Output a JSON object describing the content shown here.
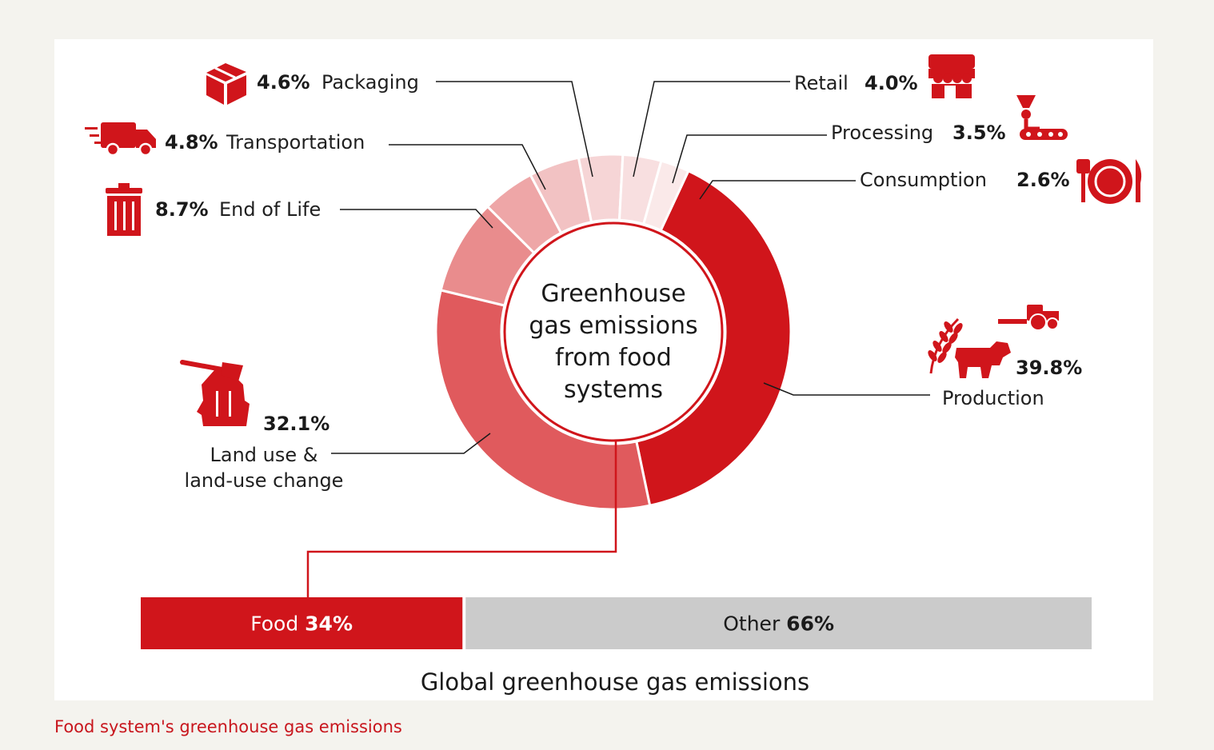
{
  "colors": {
    "food": "#d0151b",
    "other": "#cbcbcb",
    "production": "#d0151b",
    "land_use": "#e05a5d",
    "end_of_life": "#e98c8d",
    "transportation": "#eea6a7",
    "packaging": "#f2c2c3",
    "retail": "#f6d5d6",
    "processing": "#f8dfe0",
    "consumption": "#fae9e9",
    "icon": "#d0151b",
    "leader_line": "#1a1a1a",
    "caption": "#c8161d"
  },
  "center_label": [
    "Greenhouse",
    "gas emissions",
    "from food",
    "systems"
  ],
  "caption": "Food system's greenhouse gas emissions",
  "chart_data": [
    {
      "type": "pie",
      "donut": true,
      "title": "Greenhouse gas emissions from food systems",
      "unit": "%",
      "slices": [
        {
          "key": "production",
          "label": "Production",
          "value": 39.8,
          "value_text": "39.8%",
          "icon": "tractor-cow-wheat-icon"
        },
        {
          "key": "land_use",
          "label": "Land use & land-use change",
          "label_lines": [
            "Land use &",
            "land-use change"
          ],
          "value": 32.1,
          "value_text": "32.1%",
          "icon": "axe-stump-icon"
        },
        {
          "key": "end_of_life",
          "label": "End of Life",
          "value": 8.7,
          "value_text": "8.7%",
          "icon": "trash-bin-icon"
        },
        {
          "key": "transportation",
          "label": "Transportation",
          "value": 4.8,
          "value_text": "4.8%",
          "icon": "delivery-truck-icon"
        },
        {
          "key": "packaging",
          "label": "Packaging",
          "value": 4.6,
          "value_text": "4.6%",
          "icon": "package-box-icon"
        },
        {
          "key": "retail",
          "label": "Retail",
          "value": 4.0,
          "value_text": "4.0%",
          "icon": "storefront-icon"
        },
        {
          "key": "processing",
          "label": "Processing",
          "value": 3.5,
          "value_text": "3.5%",
          "icon": "processing-machine-icon"
        },
        {
          "key": "consumption",
          "label": "Consumption",
          "value": 2.6,
          "value_text": "2.6%",
          "icon": "plate-fork-knife-icon"
        }
      ]
    },
    {
      "type": "bar",
      "orientation": "horizontal",
      "stacked": true,
      "title": "Global greenhouse gas emissions",
      "unit": "%",
      "segments": [
        {
          "key": "food",
          "label": "Food",
          "value": 34,
          "value_text": "34%"
        },
        {
          "key": "other",
          "label": "Other",
          "value": 66,
          "value_text": "66%"
        }
      ]
    }
  ]
}
